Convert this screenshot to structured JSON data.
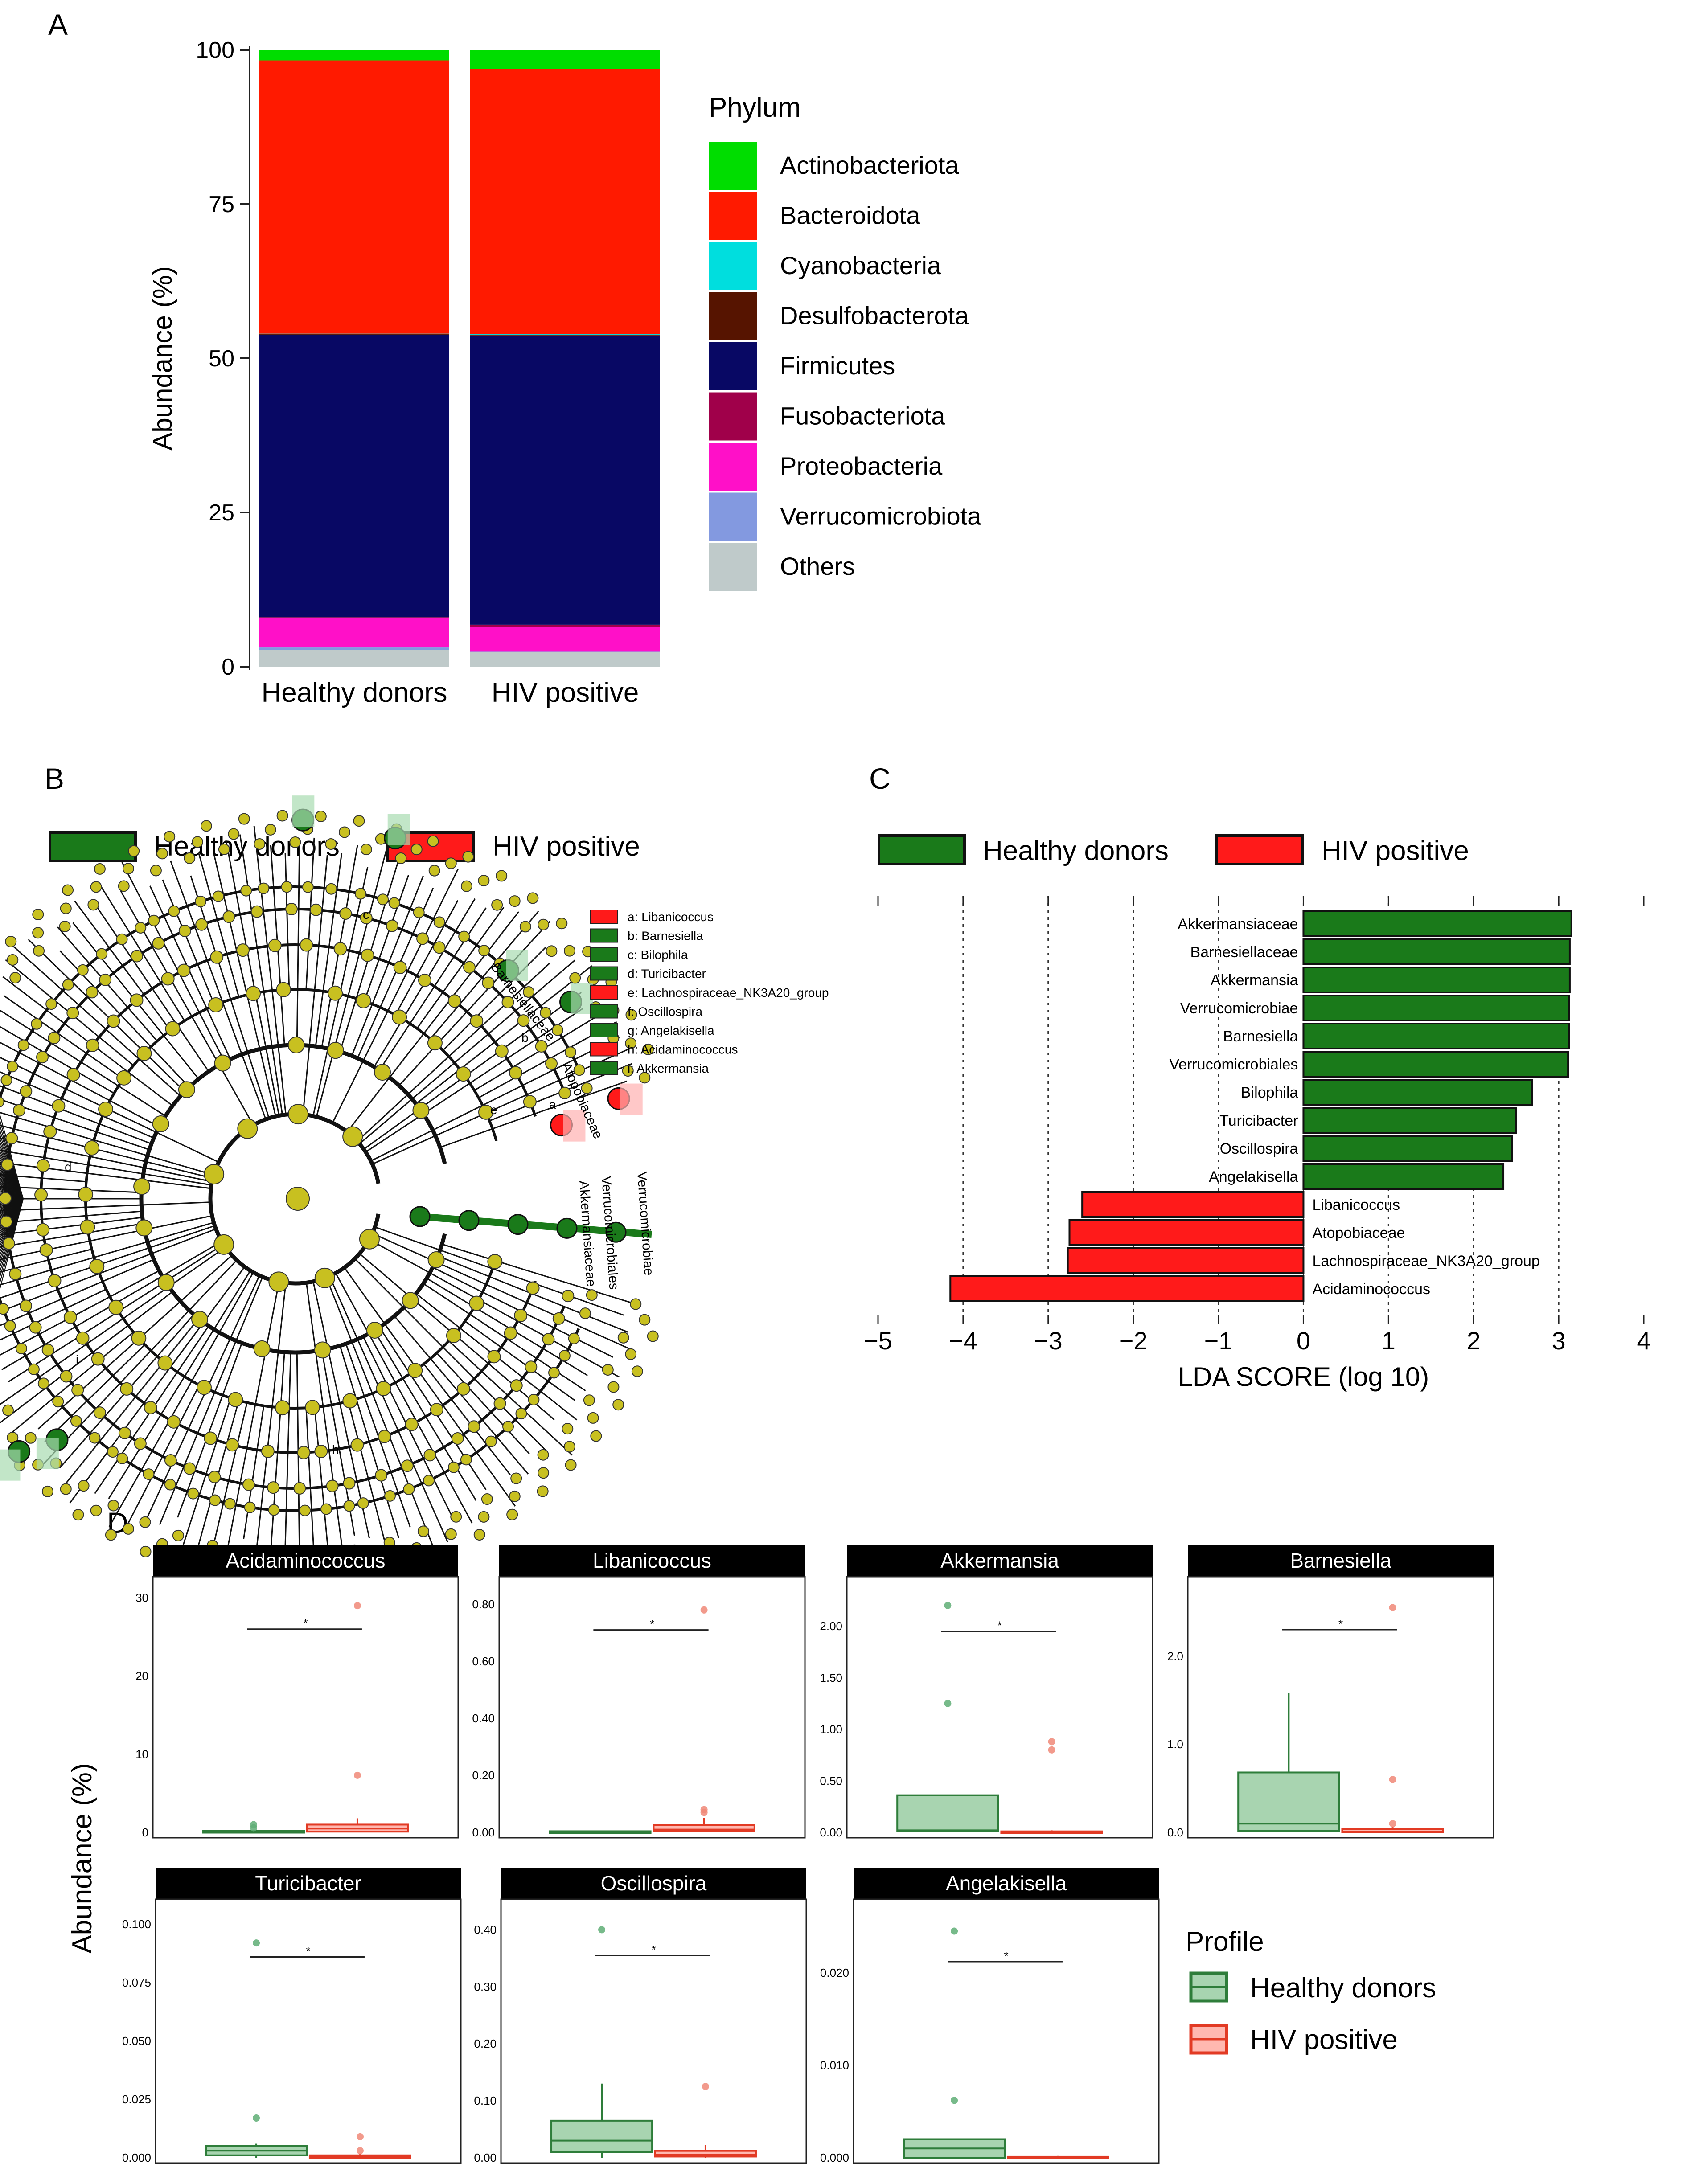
{
  "panels": {
    "A": "A",
    "B": "B",
    "C": "C",
    "D": "D"
  },
  "colors": {
    "actinobacteriota": "#00dd00",
    "bacteroidota": "#ff1a00",
    "cyanobacteria": "#00dede",
    "desulfobacterota": "#561400",
    "firmicutes": "#080864",
    "fusobacteriota": "#a0004a",
    "proteobacteria": "#ff10c8",
    "verrucomicrobiota": "#8399e0",
    "others": "#bfcaca",
    "healthy": "#1a7a1a",
    "hiv": "#ff1a1a",
    "clado_node": "#c8c020"
  },
  "chart_data": [
    {
      "panel": "A",
      "type": "bar",
      "stacked": true,
      "categories": [
        "Healthy donors",
        "HIV positive"
      ],
      "ylabel": "Abundance (%)",
      "ylim": [
        0,
        100
      ],
      "yticks": [
        "0",
        "25",
        "50",
        "75",
        "100"
      ],
      "legend_title": "Phylum",
      "series": [
        {
          "name": "Others",
          "values": [
            2.7,
            2.4
          ]
        },
        {
          "name": "Verrucomicrobiota",
          "values": [
            0.4,
            0.1
          ]
        },
        {
          "name": "Proteobacteria",
          "values": [
            4.8,
            3.9
          ]
        },
        {
          "name": "Fusobacteriota",
          "values": [
            0.1,
            0.4
          ]
        },
        {
          "name": "Firmicutes",
          "values": [
            45.8,
            46.9
          ]
        },
        {
          "name": "Desulfobacterota",
          "values": [
            0.1,
            0.1
          ]
        },
        {
          "name": "Cyanobacteria",
          "values": [
            0.1,
            0.1
          ]
        },
        {
          "name": "Bacteroidota",
          "values": [
            44.3,
            43.0
          ]
        },
        {
          "name": "Actinobacteriota",
          "values": [
            1.7,
            3.1
          ]
        }
      ],
      "legend_order": [
        "Actinobacteriota",
        "Bacteroidota",
        "Cyanobacteria",
        "Desulfobacterota",
        "Firmicutes",
        "Fusobacteriota",
        "Proteobacteria",
        "Verrucomicrobiota",
        "Others"
      ]
    },
    {
      "panel": "B",
      "type": "cladogram",
      "legend": [
        "Healthy donors",
        "HIV positive"
      ],
      "keys": [
        {
          "text": "a: Libanicoccus",
          "group": "hiv"
        },
        {
          "text": "b: Barnesiella",
          "group": "healthy"
        },
        {
          "text": "c: Bilophila",
          "group": "healthy"
        },
        {
          "text": "d: Turicibacter",
          "group": "healthy"
        },
        {
          "text": "e: Lachnospiraceae_NK3A20_group",
          "group": "hiv"
        },
        {
          "text": "f: Oscillospira",
          "group": "healthy"
        },
        {
          "text": "g: Angelakisella",
          "group": "healthy"
        },
        {
          "text": "h: Acidaminococcus",
          "group": "hiv"
        },
        {
          "text": "i: Akkermansia",
          "group": "healthy"
        }
      ],
      "outer_labels": [
        "Barnesiellaceae",
        "Atopobiaceae",
        "Verrucomicrobiae",
        "Verrucomicrobiales",
        "Akkermansiaceae"
      ],
      "node_letters": [
        "c",
        "b",
        "a",
        "e",
        "d",
        "h",
        "i"
      ]
    },
    {
      "panel": "C",
      "type": "bar",
      "orientation": "horizontal",
      "legend": [
        "Healthy donors",
        "HIV positive"
      ],
      "xlabel": "LDA SCORE (log 10)",
      "xlim": [
        -5,
        4
      ],
      "xticks": [
        "−5",
        "−4",
        "−3",
        "−2",
        "−1",
        "0",
        "1",
        "2",
        "3",
        "4"
      ],
      "bars": [
        {
          "label": "Akkermansiaceae",
          "value": 3.15,
          "group": "healthy"
        },
        {
          "label": "Barnesiellaceae",
          "value": 3.13,
          "group": "healthy"
        },
        {
          "label": "Akkermansia",
          "value": 3.13,
          "group": "healthy"
        },
        {
          "label": "Verrucomicrobiae",
          "value": 3.12,
          "group": "healthy"
        },
        {
          "label": "Barnesiella",
          "value": 3.12,
          "group": "healthy"
        },
        {
          "label": "Verrucomicrobiales",
          "value": 3.11,
          "group": "healthy"
        },
        {
          "label": "Bilophila",
          "value": 2.69,
          "group": "healthy"
        },
        {
          "label": "Turicibacter",
          "value": 2.5,
          "group": "healthy"
        },
        {
          "label": "Oscillospira",
          "value": 2.45,
          "group": "healthy"
        },
        {
          "label": "Angelakisella",
          "value": 2.35,
          "group": "healthy"
        },
        {
          "label": "Libanicoccus",
          "value": -2.6,
          "group": "hiv"
        },
        {
          "label": "Atopobiaceae",
          "value": -2.75,
          "group": "hiv"
        },
        {
          "label": "Lachnospiraceae_NK3A20_group",
          "value": -2.77,
          "group": "hiv"
        },
        {
          "label": "Acidaminococcus",
          "value": -4.15,
          "group": "hiv"
        }
      ]
    },
    {
      "panel": "D",
      "type": "box",
      "ylabel": "Abundance (%)",
      "legend_title": "Profile",
      "legend": [
        "Healthy donors",
        "HIV positive"
      ],
      "facets": [
        {
          "title": "Acidaminococcus",
          "ymax": 31,
          "yticks": [
            "0",
            "10",
            "20",
            "30"
          ],
          "ytick_values": [
            0,
            10,
            20,
            30
          ],
          "groups": [
            {
              "group": "healthy",
              "q1": 0.05,
              "median": 0.1,
              "q3": 0.2,
              "wlo": 0,
              "whi": 0.3,
              "outliers": [
                0.6,
                1.0
              ]
            },
            {
              "group": "hiv",
              "q1": 0.1,
              "median": 0.5,
              "q3": 1.0,
              "wlo": 0,
              "whi": 1.8,
              "outliers": [
                7.3,
                29
              ]
            }
          ],
          "sig_y": 26
        },
        {
          "title": "Libanicoccus",
          "ymax": 0.85,
          "yticks": [
            "0.00",
            "0.20",
            "0.40",
            "0.60",
            "0.80"
          ],
          "ytick_values": [
            0,
            0.2,
            0.4,
            0.6,
            0.8
          ],
          "groups": [
            {
              "group": "healthy",
              "q1": 0,
              "median": 0.002,
              "q3": 0.004,
              "wlo": 0,
              "whi": 0.006,
              "outliers": []
            },
            {
              "group": "hiv",
              "q1": 0.005,
              "median": 0.01,
              "q3": 0.025,
              "wlo": 0,
              "whi": 0.05,
              "outliers": [
                0.07,
                0.08,
                0.78
              ]
            }
          ],
          "sig_y": 0.71
        },
        {
          "title": "Akkermansia",
          "ymax": 2.35,
          "yticks": [
            "0.00",
            "0.50",
            "1.00",
            "1.50",
            "2.00"
          ],
          "ytick_values": [
            0,
            0.5,
            1.0,
            1.5,
            2.0
          ],
          "groups": [
            {
              "group": "healthy",
              "q1": 0.01,
              "median": 0.02,
              "q3": 0.36,
              "wlo": 0,
              "whi": 0.36,
              "outliers": [
                1.25,
                2.2
              ]
            },
            {
              "group": "hiv",
              "q1": 0,
              "median": 0.005,
              "q3": 0.01,
              "wlo": 0,
              "whi": 0.02,
              "outliers": [
                0.8,
                0.88
              ]
            }
          ],
          "sig_y": 1.95
        },
        {
          "title": "Barnesiella",
          "ymax": 2.75,
          "yticks": [
            "0.0",
            "1.0",
            "2.0"
          ],
          "ytick_values": [
            0,
            1.0,
            2.0
          ],
          "groups": [
            {
              "group": "healthy",
              "q1": 0.02,
              "median": 0.1,
              "q3": 0.68,
              "wlo": 0,
              "whi": 1.58,
              "outliers": []
            },
            {
              "group": "hiv",
              "q1": 0,
              "median": 0.01,
              "q3": 0.04,
              "wlo": 0,
              "whi": 0.06,
              "outliers": [
                0.1,
                0.6,
                2.55
              ]
            }
          ],
          "sig_y": 2.3
        },
        {
          "title": "Turicibacter",
          "ymax": 0.105,
          "yticks": [
            "0.000",
            "0.025",
            "0.050",
            "0.075",
            "0.100"
          ],
          "ytick_values": [
            0,
            0.025,
            0.05,
            0.075,
            0.1
          ],
          "groups": [
            {
              "group": "healthy",
              "q1": 0.001,
              "median": 0.003,
              "q3": 0.005,
              "wlo": 0,
              "whi": 0.006,
              "outliers": [
                0.017,
                0.092
              ]
            },
            {
              "group": "hiv",
              "q1": 0,
              "median": 0.0005,
              "q3": 0.001,
              "wlo": 0,
              "whi": 0.0015,
              "outliers": [
                0.003,
                0.009
              ]
            }
          ],
          "sig_y": 0.086
        },
        {
          "title": "Oscillospira",
          "ymax": 0.43,
          "yticks": [
            "0.00",
            "0.10",
            "0.20",
            "0.30",
            "0.40"
          ],
          "ytick_values": [
            0,
            0.1,
            0.2,
            0.3,
            0.4
          ],
          "groups": [
            {
              "group": "healthy",
              "q1": 0.01,
              "median": 0.03,
              "q3": 0.065,
              "wlo": 0,
              "whi": 0.13,
              "outliers": [
                0.4
              ]
            },
            {
              "group": "hiv",
              "q1": 0.002,
              "median": 0.005,
              "q3": 0.012,
              "wlo": 0,
              "whi": 0.022,
              "outliers": [
                0.125
              ]
            }
          ],
          "sig_y": 0.355
        },
        {
          "title": "Angelakisella",
          "ymax": 0.0265,
          "yticks": [
            "0.000",
            "0.010",
            "0.020"
          ],
          "ytick_values": [
            0,
            0.01,
            0.02
          ],
          "groups": [
            {
              "group": "healthy",
              "q1": 0,
              "median": 0.001,
              "q3": 0.002,
              "wlo": 0,
              "whi": 0.002,
              "outliers": [
                0.0062,
                0.0245
              ]
            },
            {
              "group": "hiv",
              "q1": 0,
              "median": 5e-05,
              "q3": 0.0001,
              "wlo": 0,
              "whi": 0.0002,
              "outliers": []
            }
          ],
          "sig_y": 0.0212
        }
      ],
      "sig_mark": "*"
    }
  ]
}
